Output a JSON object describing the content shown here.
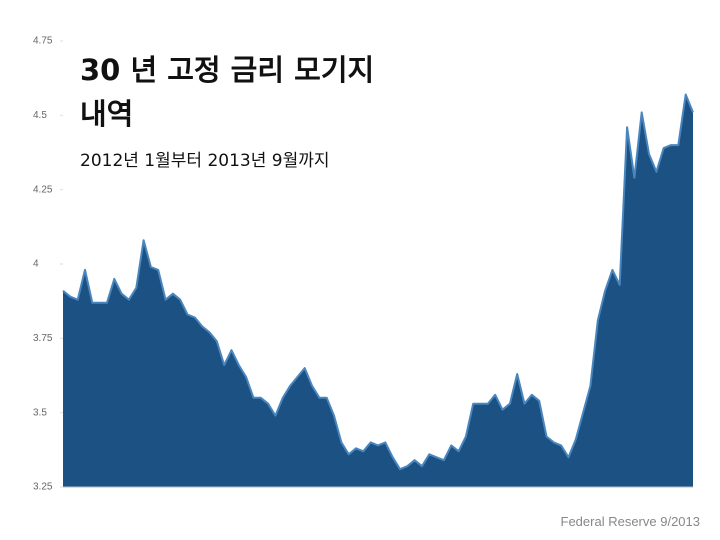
{
  "chart_data": {
    "type": "area",
    "title": "30 년 고정 금리 모기지 내역",
    "subtitle": "2012년 1월부터 2013년 9월까지",
    "source": "Federal Reserve 9/2013",
    "color": "#1b5283",
    "values": [
      3.91,
      3.89,
      3.88,
      3.98,
      3.87,
      3.87,
      3.87,
      3.95,
      3.9,
      3.88,
      3.92,
      4.08,
      3.99,
      3.98,
      3.88,
      3.9,
      3.88,
      3.83,
      3.82,
      3.79,
      3.77,
      3.74,
      3.66,
      3.71,
      3.66,
      3.62,
      3.55,
      3.55,
      3.53,
      3.49,
      3.55,
      3.59,
      3.62,
      3.65,
      3.59,
      3.55,
      3.55,
      3.49,
      3.4,
      3.36,
      3.38,
      3.37,
      3.4,
      3.39,
      3.4,
      3.35,
      3.31,
      3.32,
      3.34,
      3.32,
      3.36,
      3.35,
      3.34,
      3.39,
      3.37,
      3.42,
      3.53,
      3.53,
      3.53,
      3.56,
      3.51,
      3.53,
      3.63,
      3.53,
      3.56,
      3.54,
      3.42,
      3.4,
      3.39,
      3.35,
      3.41,
      3.5,
      3.59,
      3.81,
      3.91,
      3.98,
      3.93,
      4.46,
      4.29,
      4.51,
      4.37,
      4.31,
      4.39,
      4.4,
      4.4,
      4.57,
      4.51
    ],
    "ylim": [
      3.25,
      4.75
    ],
    "yticks": [
      3.25,
      3.5,
      3.75,
      4,
      4.25,
      4.5,
      4.75
    ]
  }
}
